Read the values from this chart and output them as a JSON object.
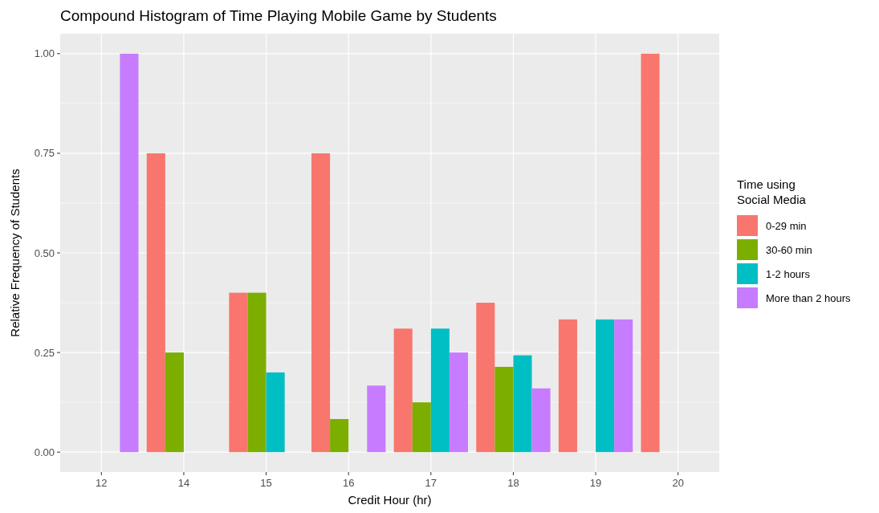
{
  "chart_data": {
    "type": "bar",
    "title": "Compound Histogram of Time Playing Mobile Game by Students",
    "xlabel": "Credit Hour (hr)",
    "ylabel": "Relative Frequency of Students",
    "legend_title": "Time using Social Media",
    "categories": [
      "12",
      "14",
      "15",
      "16",
      "17",
      "18",
      "19",
      "20"
    ],
    "series": [
      {
        "name": "0-29 min",
        "color": "#f8766d",
        "values": [
          null,
          0.75,
          0.4,
          0.75,
          0.31,
          0.375,
          0.333,
          1.0
        ]
      },
      {
        "name": "30-60 min",
        "color": "#7cae00",
        "values": [
          null,
          0.25,
          0.4,
          0.083,
          0.125,
          0.214,
          null,
          null
        ]
      },
      {
        "name": "1-2 hours",
        "color": "#00bfc4",
        "values": [
          null,
          null,
          0.2,
          null,
          0.31,
          0.243,
          0.333,
          null
        ]
      },
      {
        "name": "More than 2 hours",
        "color": "#c77cff",
        "values": [
          1.0,
          null,
          null,
          0.167,
          0.25,
          0.16,
          0.333,
          null
        ]
      }
    ],
    "ylim": [
      -0.05,
      1.05
    ],
    "yticks": [
      {
        "value": 0,
        "label": "0.00"
      },
      {
        "value": 0.25,
        "label": "0.25"
      },
      {
        "value": 0.5,
        "label": "0.50"
      },
      {
        "value": 0.75,
        "label": "0.75"
      },
      {
        "value": 1,
        "label": "1.00"
      }
    ],
    "grid": true,
    "legend": "right"
  }
}
